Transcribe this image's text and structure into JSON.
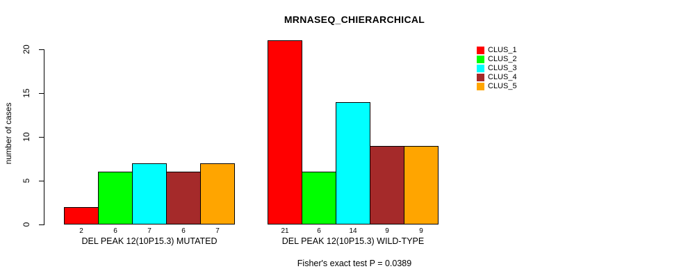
{
  "figure": {
    "background": "#FFFFFF",
    "text_color": "#000000"
  },
  "chart_data": {
    "type": "bar",
    "title": "MRNASEQ_CHIERARCHICAL",
    "ylabel": "number of cases",
    "xlabel": "",
    "footer": "Fisher's exact test P = 0.0389",
    "yticks": [
      0,
      5,
      10,
      15,
      20
    ],
    "ylim": [
      0,
      21
    ],
    "grid": false,
    "legend_position": "top-right",
    "bar_border_color": "#000000",
    "show_bar_values": true,
    "categories": [
      "DEL PEAK 12(10P15.3) MUTATED",
      "DEL PEAK 12(10P15.3) WILD-TYPE"
    ],
    "series": [
      {
        "name": "CLUS_1",
        "color": "#FF0000",
        "values": [
          2,
          21
        ]
      },
      {
        "name": "CLUS_2",
        "color": "#00FF00",
        "values": [
          6,
          6
        ]
      },
      {
        "name": "CLUS_3",
        "color": "#00FFFF",
        "values": [
          7,
          14
        ]
      },
      {
        "name": "CLUS_4",
        "color": "#A52A2A",
        "values": [
          6,
          9
        ]
      },
      {
        "name": "CLUS_5",
        "color": "#FFA500",
        "values": [
          7,
          9
        ]
      }
    ]
  }
}
